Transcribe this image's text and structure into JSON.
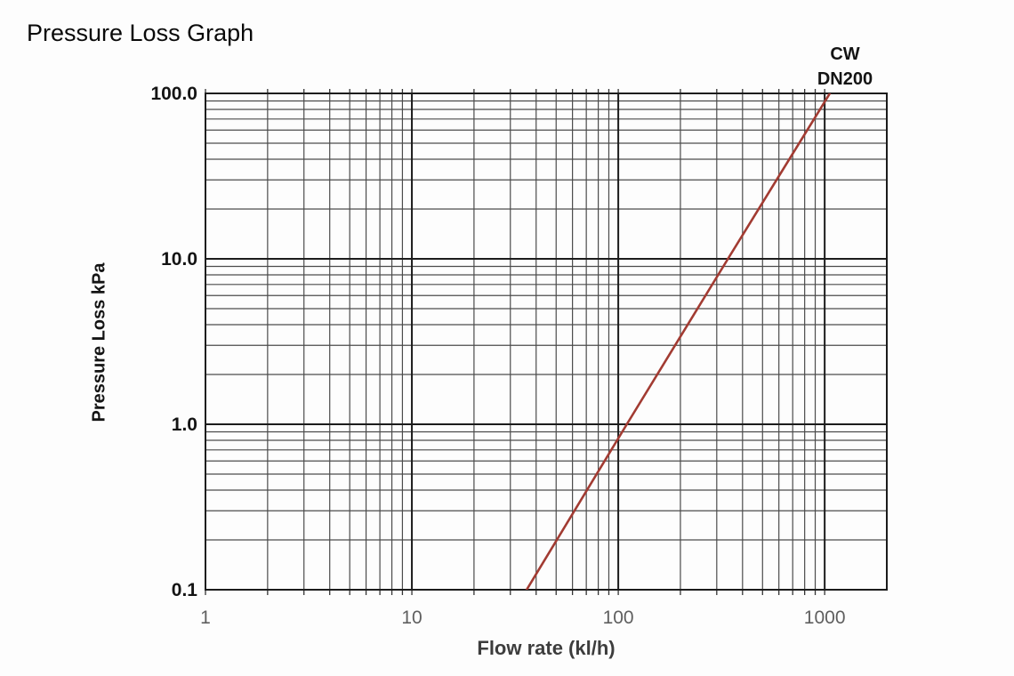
{
  "page": {
    "title": "Pressure Loss Graph"
  },
  "legend": {
    "lines": [
      "CW",
      "DN200"
    ]
  },
  "axes": {
    "x": {
      "label": "Flow rate (kl/h)",
      "scale": "log",
      "range": [
        1,
        2000
      ],
      "ticks": [
        {
          "label": "1",
          "value": 1
        },
        {
          "label": "10",
          "value": 10
        },
        {
          "label": "100",
          "value": 100
        },
        {
          "label": "1000",
          "value": 1000
        }
      ]
    },
    "y": {
      "label": "Pressure Loss kPa",
      "scale": "log",
      "range": [
        0.1,
        100
      ],
      "ticks": [
        {
          "label": "100.0",
          "value": 100
        },
        {
          "label": "10.0",
          "value": 10
        },
        {
          "label": "1.0",
          "value": 1
        },
        {
          "label": "0.1",
          "value": 0.1
        }
      ]
    }
  },
  "chart_data": {
    "type": "line",
    "title": "Pressure Loss Graph",
    "xlabel": "Flow rate (kl/h)",
    "ylabel": "Pressure Loss kPa",
    "x_scale": "log",
    "y_scale": "log",
    "xlim": [
      1,
      2000
    ],
    "ylim": [
      0.1,
      100
    ],
    "grid": "full log-log grid, major decade lines heavier, minor lines at 2-9 per decade",
    "legend_position": "top-right above curve exit",
    "series": [
      {
        "name": "CW DN200",
        "color": "#a23b32",
        "points": [
          [
            36,
            0.1
          ],
          [
            110,
            1.0
          ],
          [
            340,
            10.0
          ],
          [
            1060,
            100.0
          ]
        ],
        "note": "straight line on log-log axes, slope ~2"
      }
    ]
  },
  "colors": {
    "line": "#a23b32",
    "grid_major": "#1c1c1c",
    "grid_minor": "#4b4b4b",
    "frame": "#1c1c1c",
    "tick_mark": "#333333",
    "x_tick_text": "#5f5f5f",
    "y_tick_text": "#141414",
    "background": "#fdfdfd"
  }
}
